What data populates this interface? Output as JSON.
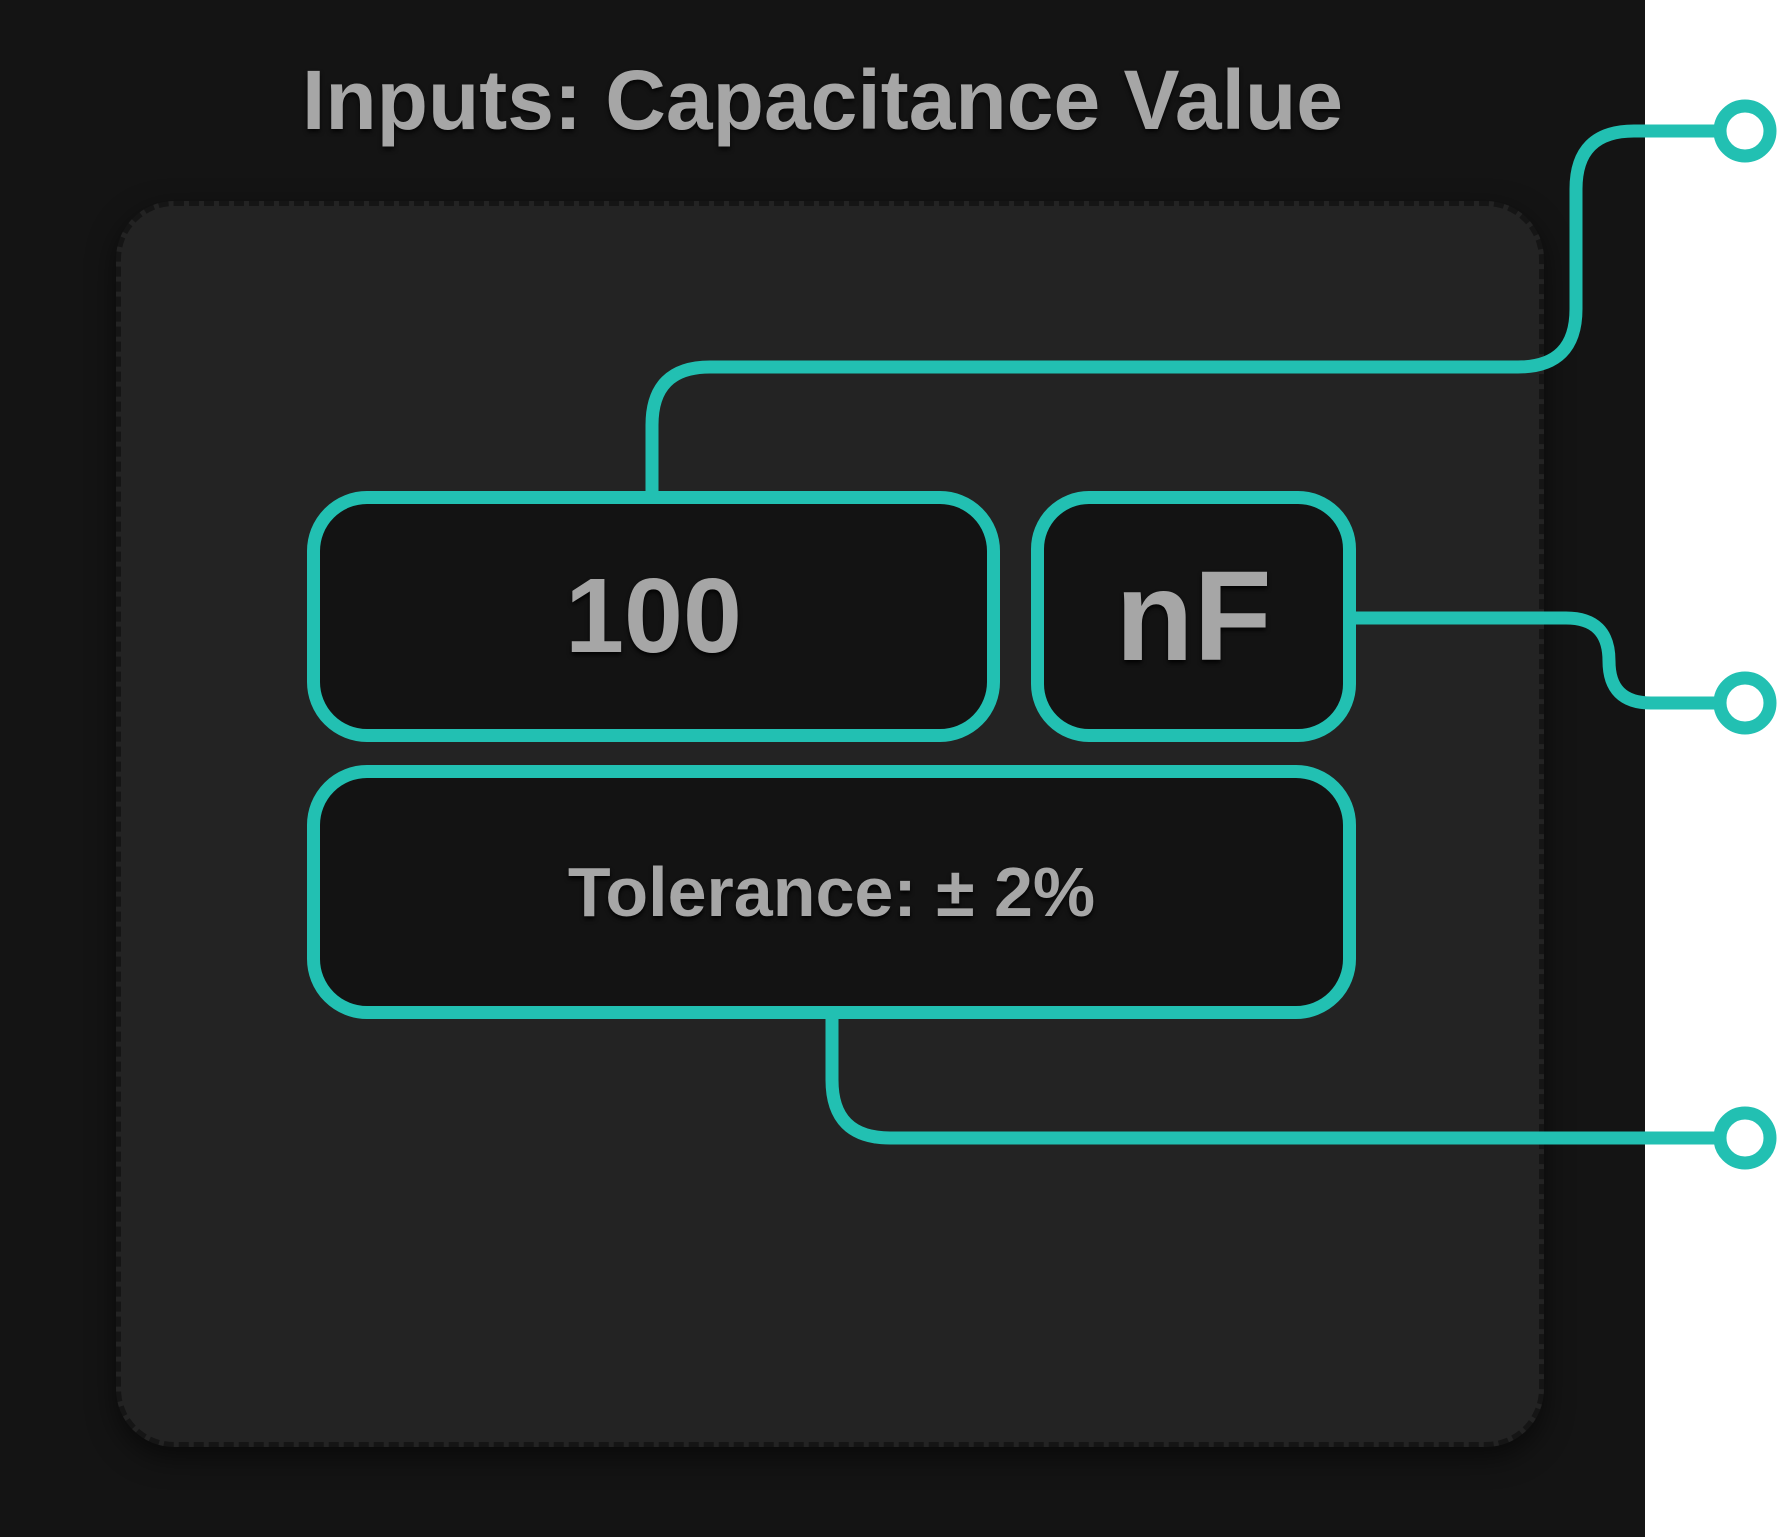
{
  "title": "Inputs: Capacitance Value",
  "fields": {
    "value": "100",
    "unit": "nF",
    "tolerance": "Tolerance: ± 2%"
  },
  "colors": {
    "background": "#141414",
    "card": "#232323",
    "accent": "#22c0b2",
    "field_fill": "#131313",
    "text": "#a6a6a6"
  }
}
